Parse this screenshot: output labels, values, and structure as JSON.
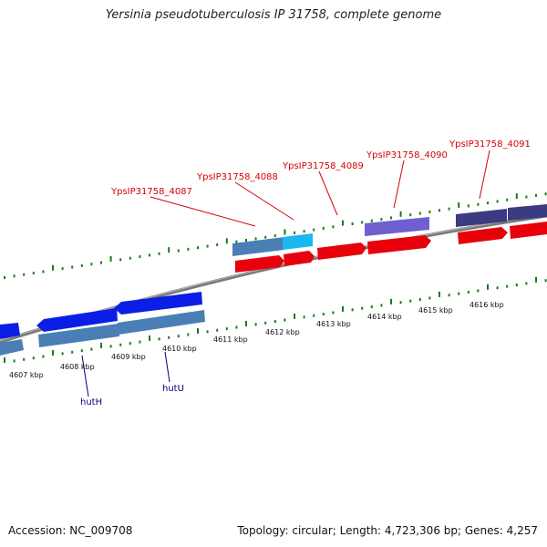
{
  "title": "Yersinia pseudotuberculosis IP 31758, complete genome",
  "footer": {
    "accession": "Accession: NC_009708",
    "topology": "Topology: circular; Length: 4,723,306 bp; Genes: 4,257"
  },
  "colors": {
    "backbone": "#8a8a8a",
    "tick": "#1a7a1a",
    "forward_gene": "#e8000b",
    "reverse_gene": "#0a1ee6",
    "reverse_gene_light": "#4a7fb5",
    "cyan_gene": "#19b8ee",
    "purple_gene": "#6f5fd0",
    "dark_purple_gene": "#3c3a80",
    "label_red": "#d4000a",
    "label_blue": "#000080"
  },
  "scale_labels": [
    "4607 kbp",
    "4608 kbp",
    "4609 kbp",
    "4610 kbp",
    "4611 kbp",
    "4612 kbp",
    "4613 kbp",
    "4614 kbp",
    "4615 kbp",
    "4616 kbp"
  ],
  "gene_labels_top": [
    "YpsIP31758_4087",
    "YpsIP31758_4088",
    "YpsIP31758_4089",
    "YpsIP31758_4090",
    "YpsIP31758_4091"
  ],
  "gene_labels_bottom": [
    "hutH",
    "hutU"
  ]
}
